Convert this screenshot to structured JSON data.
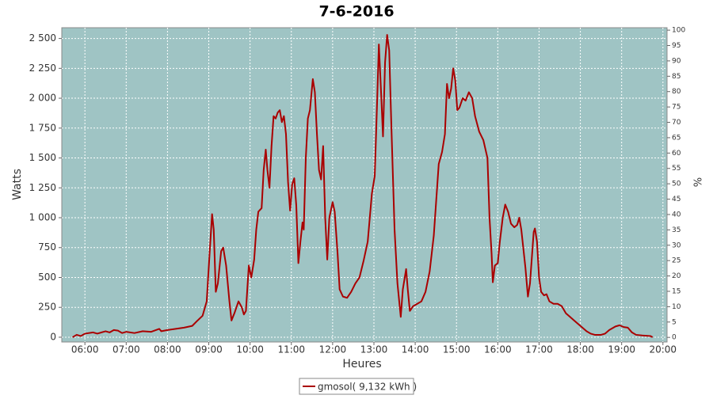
{
  "chart_data": {
    "type": "line",
    "title": "7-6-2016",
    "y_label": "Watts",
    "y2_label": "%",
    "x_label": "Heures",
    "xlim": [
      5.44,
      20.1
    ],
    "ylim": [
      -40,
      2590
    ],
    "y2lim": [
      -1.5,
      100.8
    ],
    "xticks": [
      {
        "value": 6,
        "label": "06:00"
      },
      {
        "value": 7,
        "label": "07:00"
      },
      {
        "value": 8,
        "label": "08:00"
      },
      {
        "value": 9,
        "label": "09:00"
      },
      {
        "value": 10,
        "label": "10:00"
      },
      {
        "value": 11,
        "label": "11:00"
      },
      {
        "value": 12,
        "label": "12:00"
      },
      {
        "value": 13,
        "label": "13:00"
      },
      {
        "value": 14,
        "label": "14:00"
      },
      {
        "value": 15,
        "label": "15:00"
      },
      {
        "value": 16,
        "label": "16:00"
      },
      {
        "value": 17,
        "label": "17:00"
      },
      {
        "value": 18,
        "label": "18:00"
      },
      {
        "value": 19,
        "label": "19:00"
      },
      {
        "value": 20,
        "label": "20:00"
      }
    ],
    "yticks": [
      0,
      250,
      500,
      750,
      {
        "value": 1000,
        "label": "1 000"
      },
      {
        "value": 1250,
        "label": "1 250"
      },
      {
        "value": 1500,
        "label": "1 500"
      },
      {
        "value": 1750,
        "label": "1 750"
      },
      {
        "value": 2000,
        "label": "2 000"
      },
      {
        "value": 2250,
        "label": "2 250"
      },
      {
        "value": 2500,
        "label": "2 500"
      }
    ],
    "y2ticks": [
      0,
      5,
      10,
      15,
      20,
      25,
      30,
      35,
      40,
      45,
      50,
      55,
      60,
      65,
      70,
      75,
      80,
      85,
      90,
      95,
      100
    ],
    "grid": true,
    "background": "#9fc4c4",
    "legend": "bottom",
    "x": [
      5.7,
      5.8,
      5.9,
      6.0,
      6.2,
      6.3,
      6.5,
      6.6,
      6.7,
      6.8,
      6.9,
      7.0,
      7.2,
      7.4,
      7.6,
      7.8,
      7.85,
      8.0,
      8.2,
      8.4,
      8.6,
      8.7,
      8.85,
      8.95,
      9.02,
      9.08,
      9.12,
      9.17,
      9.22,
      9.3,
      9.35,
      9.42,
      9.5,
      9.55,
      9.62,
      9.72,
      9.8,
      9.85,
      9.9,
      9.97,
      10.03,
      10.1,
      10.15,
      10.2,
      10.28,
      10.33,
      10.38,
      10.42,
      10.47,
      10.52,
      10.57,
      10.62,
      10.67,
      10.72,
      10.77,
      10.82,
      10.87,
      10.92,
      10.97,
      11.02,
      11.07,
      11.12,
      11.17,
      11.22,
      11.27,
      11.3,
      11.35,
      11.4,
      11.45,
      11.52,
      11.57,
      11.62,
      11.67,
      11.72,
      11.77,
      11.82,
      11.87,
      11.92,
      12.0,
      12.05,
      12.12,
      12.17,
      12.25,
      12.35,
      12.45,
      12.55,
      12.65,
      12.75,
      12.85,
      12.95,
      13.02,
      13.08,
      13.12,
      13.18,
      13.22,
      13.27,
      13.32,
      13.37,
      13.42,
      13.5,
      13.57,
      13.65,
      13.7,
      13.78,
      13.82,
      13.87,
      13.95,
      14.05,
      14.15,
      14.25,
      14.35,
      14.45,
      14.52,
      14.57,
      14.65,
      14.72,
      14.77,
      14.82,
      14.87,
      14.92,
      14.97,
      15.02,
      15.07,
      15.15,
      15.22,
      15.3,
      15.38,
      15.45,
      15.55,
      15.65,
      15.75,
      15.8,
      15.85,
      15.88,
      15.93,
      16.0,
      16.05,
      16.12,
      16.18,
      16.25,
      16.32,
      16.4,
      16.47,
      16.52,
      16.57,
      16.67,
      16.73,
      16.78,
      16.87,
      16.9,
      16.95,
      17.0,
      17.05,
      17.12,
      17.18,
      17.25,
      17.35,
      17.45,
      17.55,
      17.65,
      17.75,
      17.85,
      17.95,
      18.05,
      18.15,
      18.25,
      18.35,
      18.5,
      18.6,
      18.7,
      18.85,
      18.95,
      19.05,
      19.15,
      19.25,
      19.35,
      19.5,
      19.7,
      19.75
    ],
    "series": [
      {
        "name": "gmosol( 9,132 kWh )",
        "color": "#aa0000",
        "values": [
          0,
          20,
          10,
          30,
          40,
          30,
          50,
          40,
          60,
          55,
          35,
          45,
          35,
          50,
          45,
          70,
          50,
          60,
          70,
          80,
          95,
          130,
          180,
          300,
          700,
          1030,
          900,
          380,
          450,
          720,
          750,
          600,
          300,
          140,
          200,
          300,
          250,
          190,
          220,
          600,
          500,
          650,
          900,
          1050,
          1080,
          1400,
          1570,
          1400,
          1250,
          1600,
          1850,
          1830,
          1880,
          1900,
          1800,
          1850,
          1700,
          1300,
          1060,
          1280,
          1330,
          1100,
          620,
          800,
          960,
          900,
          1500,
          1830,
          1900,
          2160,
          2050,
          1700,
          1400,
          1320,
          1600,
          1000,
          650,
          1000,
          1130,
          1050,
          700,
          400,
          340,
          330,
          380,
          450,
          500,
          640,
          800,
          1200,
          1350,
          2000,
          2450,
          2000,
          1680,
          2300,
          2530,
          2400,
          1800,
          900,
          450,
          170,
          400,
          570,
          400,
          220,
          260,
          280,
          300,
          380,
          550,
          850,
          1200,
          1450,
          1550,
          1700,
          2120,
          2000,
          2080,
          2250,
          2150,
          1900,
          1920,
          2000,
          1980,
          2050,
          2000,
          1850,
          1720,
          1650,
          1500,
          1000,
          700,
          460,
          600,
          620,
          800,
          1000,
          1110,
          1050,
          950,
          920,
          940,
          1000,
          900,
          580,
          340,
          450,
          880,
          910,
          800,
          500,
          380,
          350,
          360,
          300,
          280,
          280,
          260,
          200,
          170,
          140,
          110,
          80,
          50,
          30,
          20,
          20,
          30,
          60,
          90,
          100,
          85,
          80,
          40,
          20,
          15,
          10,
          0
        ]
      }
    ]
  }
}
